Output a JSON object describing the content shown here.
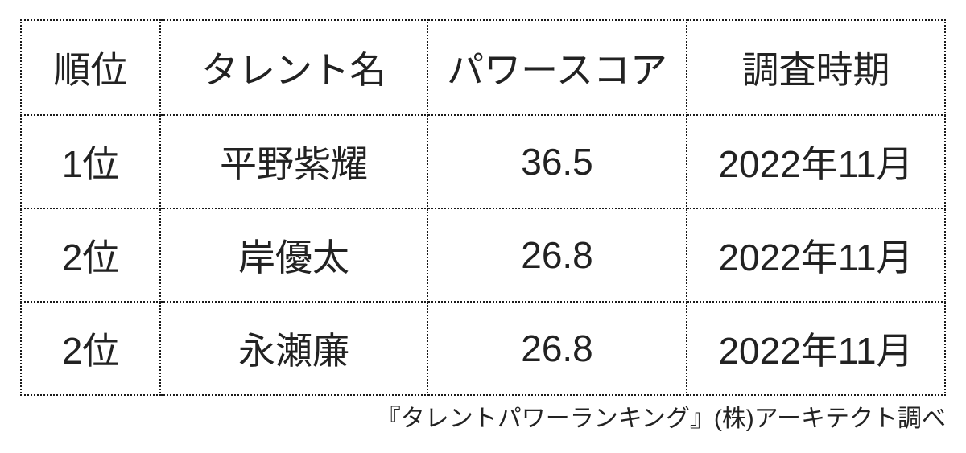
{
  "chart_data": {
    "type": "table",
    "title": "タレントパワーランキング",
    "columns": [
      "順位",
      "タレント名",
      "パワースコア",
      "調査時期"
    ],
    "rows": [
      [
        "1位",
        "平野紫耀",
        "36.5",
        "2022年11月"
      ],
      [
        "2位",
        "岸優太",
        "26.8",
        "2022年11月"
      ],
      [
        "2位",
        "永瀬廉",
        "26.8",
        "2022年11月"
      ]
    ],
    "caption": "『タレントパワーランキング』(株)アーキテクト調べ"
  },
  "colors": {
    "background": "#ffffff",
    "border": "#1a1a1a",
    "text": "#222222"
  }
}
